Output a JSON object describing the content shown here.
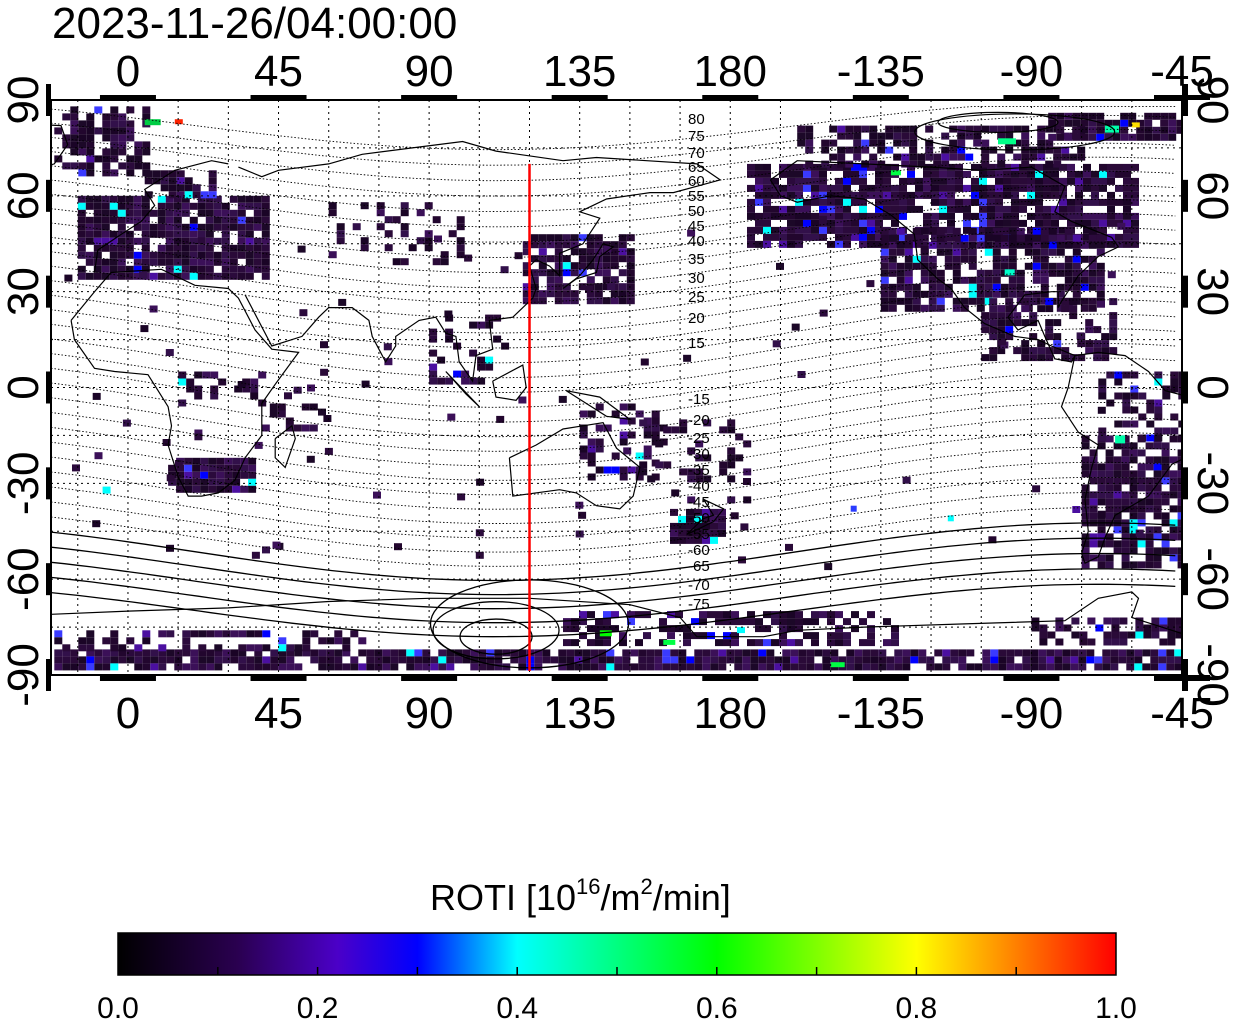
{
  "timestamp": "2023-11-26/04:00:00",
  "chart_data": {
    "type": "heatmap",
    "title": "2023-11-26/04:00:00",
    "x_ticks": [
      "0",
      "45",
      "90",
      "135",
      "180",
      "-135",
      "-90",
      "-45"
    ],
    "y_ticks": [
      "90",
      "60",
      "30",
      "0",
      "-30",
      "-60",
      "-90"
    ],
    "xlim": [
      -23,
      315
    ],
    "ylim": [
      -90,
      90
    ],
    "grid": true,
    "longitude_marker": 120,
    "longitude_marker_color": "#ff0000",
    "magnetic_latitude_labels_north": [
      "80",
      "75",
      "70",
      "65",
      "60",
      "55",
      "50",
      "45",
      "40",
      "35",
      "30",
      "25",
      "20",
      "15"
    ],
    "magnetic_latitude_labels_south": [
      "-15",
      "-20",
      "-25",
      "-30",
      "-35",
      "-40",
      "-45",
      "-50",
      "-55",
      "-60",
      "-65",
      "-70",
      "-75"
    ],
    "colorbar": {
      "label_main": "ROTI  [10",
      "label_sup1": "16",
      "label_mid": "/m",
      "label_sup2": "2",
      "label_end": "/min]",
      "range": [
        0.0,
        1.0
      ],
      "ticks": [
        "0.0",
        "0.2",
        "0.4",
        "0.6",
        "0.8",
        "1.0"
      ],
      "colors": [
        "#000000",
        "#3a0a6a",
        "#0000ff",
        "#00ffff",
        "#00ff00",
        "#ffff00",
        "#ff0000"
      ]
    }
  }
}
